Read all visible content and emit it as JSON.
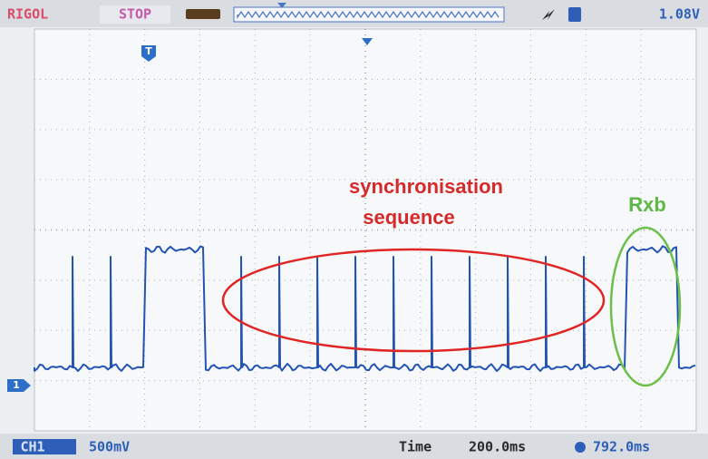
{
  "status_bar": {
    "brand": "RIGOL",
    "state": "STOP",
    "trigger_level": "1.08V"
  },
  "annotations": {
    "sync_line1": "synchronisation",
    "sync_line2": "sequence",
    "rxb": "Rxb"
  },
  "markers": {
    "trigger": "T",
    "channel": "1"
  },
  "bottom_bar": {
    "channel": "CH1",
    "scale": "500mV",
    "time_label": "Time",
    "timebase": "200.0ms",
    "offset": "792.0ms"
  }
}
